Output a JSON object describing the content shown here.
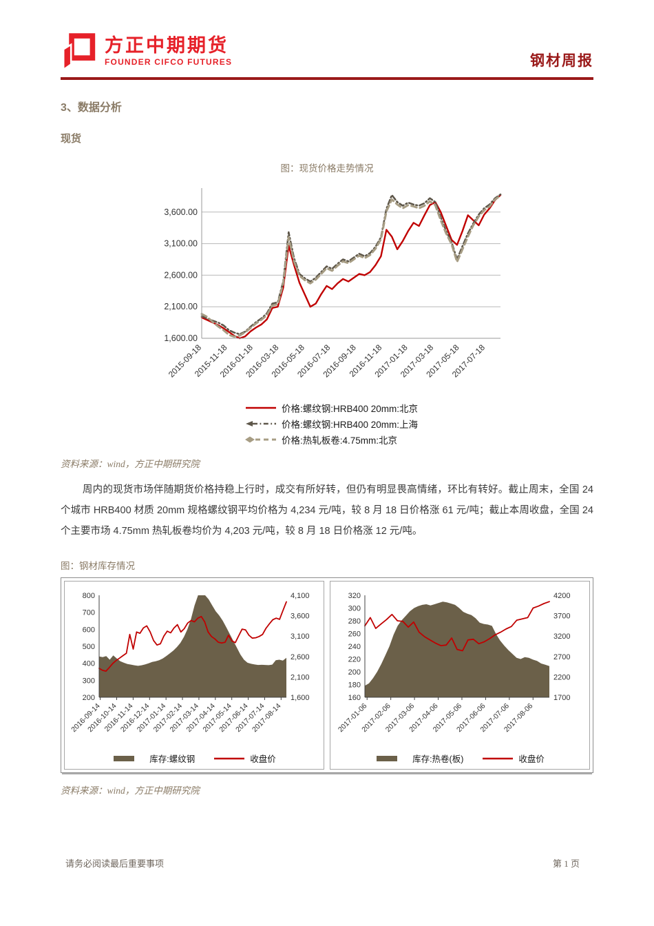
{
  "header": {
    "logo_cn": "方正中期期货",
    "logo_en": "FOUNDER CIFCO FUTURES",
    "report_title": "钢材周报"
  },
  "section_heading": "3、数据分析",
  "subsection_heading": "现货",
  "figure1_caption": "图：现货价格走势情况",
  "source_note": "资料来源：wind，方正中期研究院",
  "paragraph": "周内的现货市场伴随期货价格持稳上行时，成交有所好转，但仍有明显畏高情绪，环比有转好。截止周末，全国 24 个城市 HRB400 材质 20mm 规格螺纹钢平均价格为 4,234 元/吨，较 8 月 18 日价格涨 61 元/吨；截止本周收盘，全国 24 个主要市场 4.75mm 热轧板卷均价为 4,203 元/吨，较 8 月 18 日价格涨 12 元/吨。",
  "figure2_caption": "图：钢材库存情况",
  "footer": {
    "left": "请务必阅读最后重要事项",
    "right": "第 1 页"
  },
  "colors": {
    "brand_red": "#e62129",
    "header_red": "#9a1a1a",
    "heading_taupe": "#8a7b66",
    "chart_red": "#c00000",
    "chart_dark": "#5e574a",
    "chart_tan": "#a79d84",
    "area_brown": "#6b6049",
    "grid": "#b8b8b8",
    "axis_main": "#9a9a9a",
    "axis_dark": "#404040"
  },
  "chart_data": [
    {
      "id": "spot-price-trend",
      "type": "line",
      "title": "图：现货价格走势情况",
      "x_ticks": [
        "2015-09-18",
        "2015-11-18",
        "2016-01-18",
        "2016-03-18",
        "2016-05-18",
        "2016-07-18",
        "2016-09-18",
        "2016-11-18",
        "2017-01-18",
        "2017-03-18",
        "2017-05-18",
        "2017-07-18"
      ],
      "y_ticks": [
        {
          "label": "1,600.00",
          "value": 1600
        },
        {
          "label": "2,100.00",
          "value": 2100
        },
        {
          "label": "2,600.00",
          "value": 2600
        },
        {
          "label": "3,100.00",
          "value": 3100
        },
        {
          "label": "3,600.00",
          "value": 3600
        }
      ],
      "grid_values": [
        2100,
        2600,
        3100,
        3600
      ],
      "ylim": [
        1600,
        3980
      ],
      "legend_position": "bottom",
      "series": [
        {
          "name": "价格:螺纹钢:HRB400 20mm:北京",
          "color": "#c00000",
          "dash": "solid",
          "width": 2.4,
          "marker": "none",
          "values": [
            1930,
            1890,
            1850,
            1810,
            1760,
            1700,
            1640,
            1590,
            1630,
            1710,
            1770,
            1820,
            1900,
            2080,
            2100,
            2400,
            3070,
            2760,
            2480,
            2290,
            2100,
            2150,
            2300,
            2430,
            2380,
            2470,
            2540,
            2500,
            2560,
            2620,
            2600,
            2650,
            2760,
            2900,
            3320,
            3210,
            3010,
            3140,
            3300,
            3430,
            3380,
            3550,
            3710,
            3760,
            3600,
            3380,
            3160,
            3080,
            3300,
            3550,
            3470,
            3390,
            3560,
            3660,
            3790,
            3870
          ]
        },
        {
          "name": "价格:螺纹钢:HRB400 20mm:上海",
          "color": "#5e574a",
          "dash": "dashdot",
          "width": 2.6,
          "marker": "arrow",
          "values": [
            1950,
            1915,
            1880,
            1850,
            1805,
            1730,
            1690,
            1665,
            1705,
            1785,
            1855,
            1915,
            1995,
            2150,
            2170,
            2500,
            3280,
            2870,
            2620,
            2550,
            2500,
            2560,
            2650,
            2740,
            2700,
            2780,
            2850,
            2820,
            2880,
            2940,
            2900,
            2950,
            3050,
            3200,
            3650,
            3870,
            3760,
            3700,
            3750,
            3720,
            3700,
            3740,
            3820,
            3760,
            3520,
            3300,
            3120,
            2850,
            3060,
            3260,
            3420,
            3560,
            3660,
            3720,
            3820,
            3880
          ]
        },
        {
          "name": "价格:热轧板卷:4.75mm:北京",
          "color": "#a79d84",
          "dash": "dash",
          "width": 3,
          "marker": "diamond",
          "values": [
            1985,
            1940,
            1860,
            1790,
            1730,
            1655,
            1625,
            1645,
            1695,
            1765,
            1835,
            1895,
            1965,
            2120,
            2140,
            2470,
            3200,
            2820,
            2590,
            2520,
            2470,
            2530,
            2620,
            2710,
            2670,
            2750,
            2820,
            2790,
            2850,
            2910,
            2870,
            2920,
            3020,
            3170,
            3610,
            3800,
            3720,
            3660,
            3710,
            3690,
            3660,
            3700,
            3770,
            3710,
            3470,
            3260,
            3090,
            2810,
            3010,
            3210,
            3390,
            3530,
            3630,
            3690,
            3800,
            3860
          ]
        }
      ]
    },
    {
      "id": "rebar-inventory",
      "type": "area-line",
      "x_ticks": [
        "2016-09-14",
        "2016-10-14",
        "2016-11-14",
        "2016-12-14",
        "2017-01-14",
        "2017-02-14",
        "2017-03-14",
        "2017-04-14",
        "2017-05-14",
        "2017-06-14",
        "2017-07-14",
        "2017-08-14"
      ],
      "left_ticks": [
        {
          "label": "200",
          "value": 200
        },
        {
          "label": "300",
          "value": 300
        },
        {
          "label": "400",
          "value": 400
        },
        {
          "label": "500",
          "value": 500
        },
        {
          "label": "600",
          "value": 600
        },
        {
          "label": "700",
          "value": 700
        },
        {
          "label": "800",
          "value": 800
        }
      ],
      "right_ticks": [
        {
          "label": "1,600",
          "value": 1600
        },
        {
          "label": "2,100",
          "value": 2100
        },
        {
          "label": "2,600",
          "value": 2600
        },
        {
          "label": "3,100",
          "value": 3100
        },
        {
          "label": "3,600",
          "value": 3600
        },
        {
          "label": "4,100",
          "value": 4100
        }
      ],
      "left_lim": [
        200,
        800
      ],
      "right_lim": [
        1600,
        4100
      ],
      "series": [
        {
          "name": "库存:螺纹钢",
          "axis": "left",
          "kind": "area",
          "color": "#6b6049",
          "marker": "rect",
          "values": [
            440,
            436,
            442,
            421,
            446,
            428,
            412,
            403,
            396,
            392,
            388,
            385,
            388,
            393,
            400,
            408,
            412,
            418,
            428,
            442,
            458,
            475,
            495,
            520,
            555,
            600,
            660,
            740,
            806,
            812,
            800,
            776,
            741,
            706,
            681,
            650,
            611,
            571,
            531,
            491,
            451,
            421,
            403,
            397,
            393,
            390,
            391,
            390,
            389,
            392,
            418,
            421,
            416,
            432
          ]
        },
        {
          "name": "收盘价",
          "axis": "right",
          "kind": "line",
          "color": "#c00000",
          "width": 1.8,
          "marker": "redline",
          "values": [
            2310,
            2260,
            2240,
            2330,
            2430,
            2500,
            2560,
            2620,
            2680,
            3140,
            2780,
            3200,
            3170,
            3300,
            3350,
            3200,
            2990,
            2880,
            2910,
            3100,
            3220,
            3180,
            3300,
            3380,
            3200,
            3280,
            3420,
            3480,
            3450,
            3540,
            3580,
            3450,
            3200,
            3090,
            3030,
            2950,
            2930,
            2950,
            3120,
            2980,
            2940,
            3110,
            3270,
            3250,
            3120,
            3050,
            3060,
            3090,
            3140,
            3290,
            3400,
            3500,
            3540,
            3510,
            3730,
            3940
          ]
        }
      ]
    },
    {
      "id": "hrc-inventory",
      "type": "area-line",
      "x_ticks": [
        "2017-01-06",
        "2017-02-06",
        "2017-03-06",
        "2017-04-06",
        "2017-05-06",
        "2017-06-06",
        "2017-07-06",
        "2017-08-06"
      ],
      "left_ticks": [
        {
          "label": "160",
          "value": 160
        },
        {
          "label": "180",
          "value": 180
        },
        {
          "label": "200",
          "value": 200
        },
        {
          "label": "220",
          "value": 220
        },
        {
          "label": "240",
          "value": 240
        },
        {
          "label": "260",
          "value": 260
        },
        {
          "label": "280",
          "value": 280
        },
        {
          "label": "300",
          "value": 300
        },
        {
          "label": "320",
          "value": 320
        }
      ],
      "right_ticks": [
        {
          "label": "1700",
          "value": 1700
        },
        {
          "label": "2200",
          "value": 2200
        },
        {
          "label": "2700",
          "value": 2700
        },
        {
          "label": "3200",
          "value": 3200
        },
        {
          "label": "3700",
          "value": 3700
        },
        {
          "label": "4200",
          "value": 4200
        }
      ],
      "left_lim": [
        160,
        320
      ],
      "right_lim": [
        1700,
        4200
      ],
      "series": [
        {
          "name": "库存:热卷(板)",
          "axis": "left",
          "kind": "area",
          "color": "#6b6049",
          "marker": "rect",
          "values": [
            178,
            182,
            190,
            200,
            212,
            226,
            240,
            258,
            272,
            281,
            288,
            295,
            300,
            303,
            305,
            306,
            304,
            306,
            308,
            310,
            309,
            307,
            305,
            300,
            294,
            291,
            289,
            284,
            277,
            275,
            274,
            272,
            259,
            249,
            241,
            234,
            228,
            222,
            220,
            223,
            222,
            219,
            217,
            213,
            211,
            209
          ]
        },
        {
          "name": "收盘价",
          "axis": "right",
          "kind": "line",
          "color": "#c00000",
          "width": 1.8,
          "marker": "redline",
          "values": [
            3450,
            3653,
            3388,
            3497,
            3606,
            3731,
            3575,
            3560,
            3419,
            3544,
            3294,
            3184,
            3106,
            3028,
            2966,
            2981,
            3153,
            2872,
            2841,
            3106,
            3122,
            3013,
            3059,
            3138,
            3231,
            3294,
            3372,
            3434,
            3590,
            3622,
            3653,
            3888,
            3934,
            3997,
            4044
          ]
        }
      ]
    }
  ]
}
